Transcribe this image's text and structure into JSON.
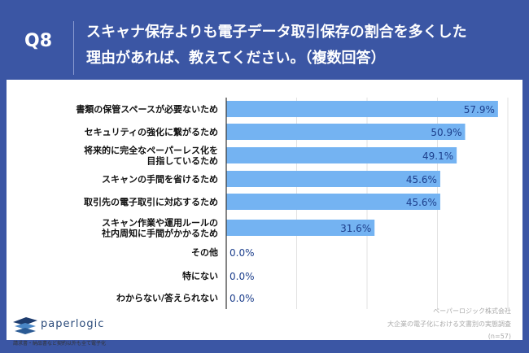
{
  "header": {
    "q": "Q8",
    "line1": "スキャナ保存よりも電子データ取引保存の割合を多くした",
    "line2": "理由があれば、教えてください。（複数回答）"
  },
  "chart_data": {
    "type": "bar",
    "orientation": "horizontal",
    "xlim": [
      0,
      60
    ],
    "grid": true,
    "bar_color": "#74b3f2",
    "categories": [
      [
        "書類の保管スペースが必要ないため"
      ],
      [
        "セキュリティの強化に繋がるため"
      ],
      [
        "将来的に完全なペーパーレス化を",
        "目指しているため"
      ],
      [
        "スキャンの手間を省けるため"
      ],
      [
        "取引先の電子取引に対応するため"
      ],
      [
        "スキャン作業や運用ルールの",
        "社内周知に手間がかかるため"
      ],
      [
        "その他"
      ],
      [
        "特にない"
      ],
      [
        "わからない/答えられない"
      ]
    ],
    "values": [
      57.9,
      50.9,
      49.1,
      45.6,
      45.6,
      31.6,
      0.0,
      0.0,
      0.0
    ],
    "labels": [
      "57.9%",
      "50.9%",
      "49.1%",
      "45.6%",
      "45.6%",
      "31.6%",
      "0.0%",
      "0.0%",
      "0.0%"
    ]
  },
  "footer": {
    "brand": "paperlogic",
    "tagline": "請求書・納品書など契約以外も全て電子化",
    "source1": "ペーパーロジック株式会社",
    "source2": "大企業の電子化における文書別の実態調査",
    "n": "(n=57)"
  }
}
